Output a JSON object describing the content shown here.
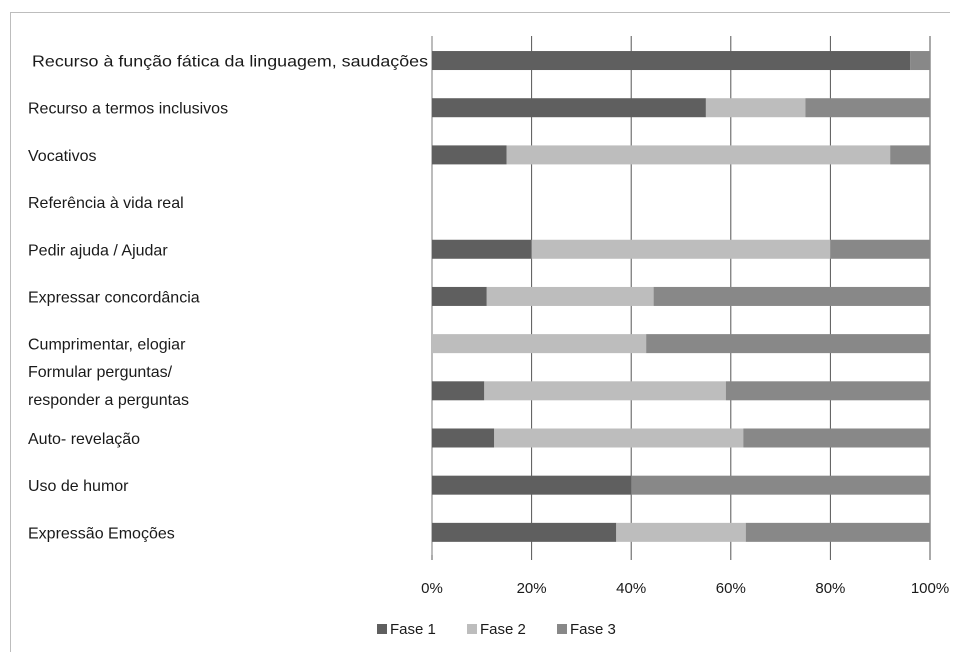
{
  "chart_data": {
    "type": "bar",
    "orientation": "horizontal",
    "stacked": "percent",
    "categories": [
      "Recurso à função fática da linguagem, saudações",
      "Recurso a termos inclusivos",
      "Vocativos",
      "Referência à vida real",
      "Pedir ajuda / Ajudar",
      "Expressar concordância",
      "Cumprimentar, elogiar",
      "Formular perguntas/ responder a perguntas",
      "Auto- revelação",
      "Uso de humor",
      "Expressão Emoções"
    ],
    "series": [
      {
        "name": "Fase 1",
        "color": "#5f5f5f",
        "values": [
          96,
          55,
          15,
          0,
          20,
          11,
          0,
          10.5,
          12.5,
          40,
          37
        ]
      },
      {
        "name": "Fase 2",
        "color": "#bdbdbd",
        "values": [
          0,
          20,
          77,
          0,
          60,
          33.5,
          43,
          48.5,
          50,
          0,
          26
        ]
      },
      {
        "name": "Fase 3",
        "color": "#888888",
        "values": [
          4,
          25,
          8,
          0,
          20,
          55.5,
          57,
          41,
          37.5,
          60,
          37
        ]
      }
    ],
    "xlim": [
      0,
      100
    ],
    "x_ticks": [
      "0%",
      "20%",
      "40%",
      "60%",
      "80%",
      "100%"
    ],
    "grid": true,
    "legend": "bottom"
  }
}
